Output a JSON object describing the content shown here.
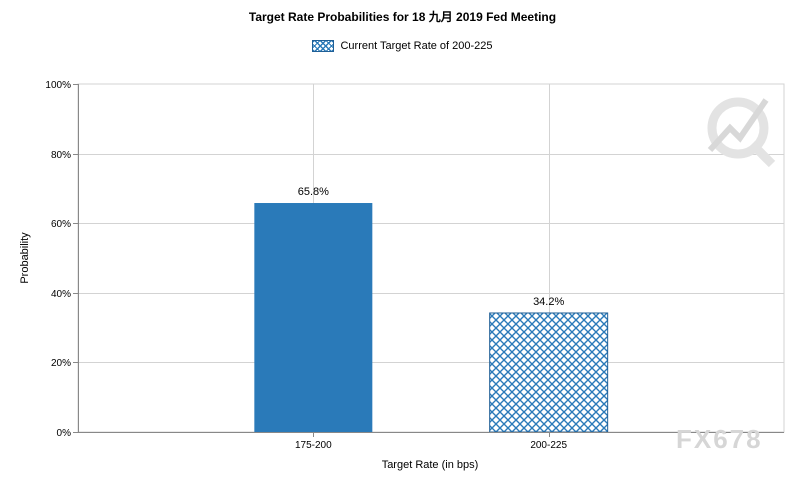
{
  "chart_data": {
    "type": "bar",
    "title": "Target Rate Probabilities for 18 九月 2019  Fed Meeting",
    "xlabel": "Target Rate (in bps)",
    "ylabel": "Probability",
    "categories": [
      "175-200",
      "200-225"
    ],
    "values": [
      65.8,
      34.2
    ],
    "data_labels": [
      "65.8%",
      "34.2%"
    ],
    "ylim": [
      0,
      100
    ],
    "yticks": [
      0,
      20,
      40,
      60,
      80,
      100
    ],
    "ytick_labels": [
      "0%",
      "20%",
      "40%",
      "60%",
      "80%",
      "100%"
    ],
    "grid": true,
    "legend": {
      "position": "top-center",
      "entry": "Current Target Rate of 200-225"
    },
    "highlight_category": "200-225",
    "colors": {
      "bar": "#2a7ab9",
      "bar_border": "#1f5f96",
      "grid": "#d3d3d3"
    }
  },
  "watermark": {
    "text": "FX678"
  }
}
